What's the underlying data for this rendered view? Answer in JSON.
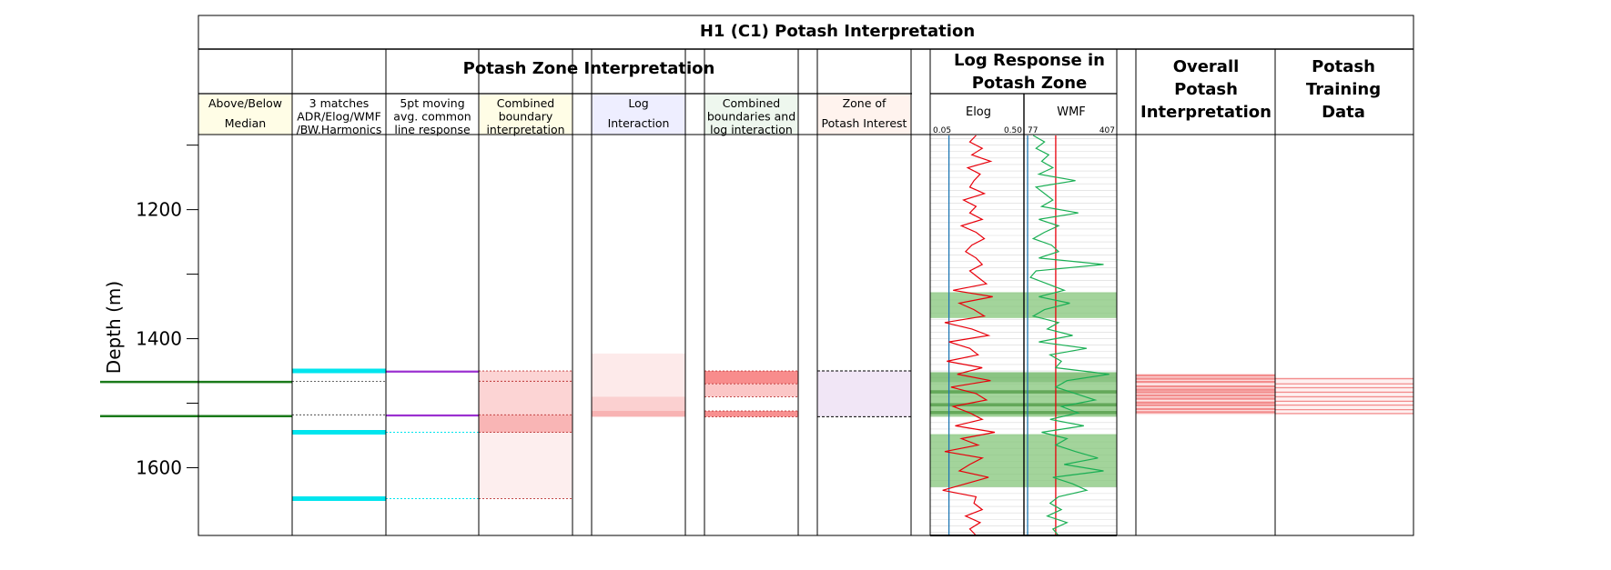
{
  "title": "H1 (C1) Potash Interpretation",
  "section_potash_zone": "Potash Zone Interpretation",
  "section_log_response": [
    "Log Response in",
    "Potash Zone"
  ],
  "section_overall": [
    "Overall",
    "Potash",
    "Interpretation"
  ],
  "section_training": [
    "Potash",
    "Training",
    "Data"
  ],
  "y_axis": {
    "label": "Depth (m)",
    "ticks": [
      "1200",
      "1400",
      "1600"
    ]
  },
  "tracks": [
    {
      "lines": [
        "Above/Below",
        "Median"
      ],
      "bg": "#fffde6"
    },
    {
      "lines": [
        "3 matches",
        "ADR/Elog/WMF",
        "/BW.Harmonics"
      ],
      "bg": "#ffffff"
    },
    {
      "lines": [
        "5pt moving",
        "avg. common",
        "line response"
      ],
      "bg": "#ffffff"
    },
    {
      "lines": [
        "Combined",
        "boundary",
        "interpretation"
      ],
      "bg": "#fffde6"
    },
    {
      "lines": [
        "Log",
        "Interaction"
      ],
      "bg": "#eeeeff"
    },
    {
      "lines": [
        "Combined",
        "boundaries and",
        "log interaction"
      ],
      "bg": "#eef7ee"
    },
    {
      "lines": [
        "Zone of",
        "Potash Interest"
      ],
      "bg": "#fff3ee"
    }
  ],
  "log_tracks": [
    {
      "name": "Elog",
      "min": "0.05",
      "max": "0.50",
      "color": "#e8000b"
    },
    {
      "name": "WMF",
      "min": "77",
      "max": "407",
      "color": "#1aaf54"
    }
  ],
  "chart_data": {
    "type": "log",
    "y_axis": {
      "label": "Depth (m)",
      "range": [
        1085,
        1705
      ],
      "inverted": true,
      "ticks": [
        1200,
        1400,
        1600
      ]
    },
    "above_below_median": {
      "color": "#1a7a1a",
      "depths": [
        1467,
        1520
      ]
    },
    "three_matches": {
      "color": "#00e5ee",
      "depths": [
        1450,
        1545,
        1648
      ],
      "dotted": [
        1466,
        1518
      ]
    },
    "moving_avg": {
      "color": "#9b30d0",
      "depths": [
        1451,
        1519
      ],
      "dotted": [
        1545,
        1648
      ]
    },
    "combined_boundary": {
      "intervals": [
        [
          1450,
          1546,
          "#fcd4d4"
        ],
        [
          1518,
          1545,
          "#f9b5b5"
        ],
        [
          1546,
          1648,
          "#fdeeee"
        ]
      ],
      "dotted": [
        1450,
        1466,
        1518,
        1545,
        1648
      ]
    },
    "log_interaction": {
      "intervals": [
        [
          1423,
          1490,
          "#fdeaea"
        ],
        [
          1490,
          1520,
          "#fbd0d0"
        ],
        [
          1512,
          1521,
          "#f8b3b3"
        ]
      ]
    },
    "combined_log_interaction": {
      "intervals": [
        [
          1450,
          1470,
          "#f88c8c"
        ],
        [
          1470,
          1490,
          "#fbc6c6"
        ],
        [
          1512,
          1521,
          "#f89090"
        ]
      ],
      "dotted": [
        1450,
        1470,
        1490,
        1512,
        1521
      ]
    },
    "zone_of_interest": {
      "interval": [
        1450,
        1521
      ],
      "color": "#f1e6f6"
    },
    "log_highlights": [
      [
        1328,
        1368,
        "#84c67a"
      ],
      [
        1452,
        1468,
        "#64b05a"
      ],
      [
        1468,
        1521,
        "#84c67a"
      ],
      [
        1480,
        1485,
        "#4f9a44"
      ],
      [
        1500,
        1505,
        "#4f9a44"
      ],
      [
        1512,
        1517,
        "#4f9a44"
      ],
      [
        1548,
        1630,
        "#84c67a"
      ]
    ],
    "elog_cutoff": 0.14,
    "wmf_cutoff": 190,
    "elog_series": {
      "depth": [
        1085,
        1095,
        1105,
        1115,
        1125,
        1135,
        1145,
        1155,
        1165,
        1175,
        1185,
        1195,
        1205,
        1215,
        1225,
        1235,
        1245,
        1255,
        1265,
        1275,
        1285,
        1295,
        1305,
        1315,
        1325,
        1335,
        1345,
        1355,
        1365,
        1375,
        1385,
        1395,
        1405,
        1415,
        1425,
        1435,
        1445,
        1455,
        1465,
        1475,
        1485,
        1495,
        1505,
        1515,
        1525,
        1535,
        1545,
        1555,
        1565,
        1575,
        1585,
        1595,
        1605,
        1615,
        1625,
        1635,
        1645,
        1655,
        1665,
        1675,
        1685,
        1695,
        1705
      ],
      "value": [
        0.27,
        0.24,
        0.3,
        0.25,
        0.34,
        0.23,
        0.29,
        0.26,
        0.24,
        0.31,
        0.21,
        0.27,
        0.24,
        0.3,
        0.2,
        0.27,
        0.31,
        0.25,
        0.22,
        0.27,
        0.3,
        0.24,
        0.28,
        0.32,
        0.16,
        0.35,
        0.19,
        0.26,
        0.31,
        0.12,
        0.25,
        0.33,
        0.14,
        0.24,
        0.28,
        0.13,
        0.3,
        0.18,
        0.34,
        0.15,
        0.27,
        0.32,
        0.16,
        0.24,
        0.3,
        0.17,
        0.36,
        0.2,
        0.28,
        0.12,
        0.3,
        0.24,
        0.19,
        0.33,
        0.22,
        0.11,
        0.27,
        0.26,
        0.3,
        0.22,
        0.29,
        0.24,
        0.27
      ]
    },
    "wmf_series": {
      "depth": [
        1085,
        1095,
        1105,
        1115,
        1125,
        1135,
        1145,
        1155,
        1165,
        1175,
        1185,
        1195,
        1205,
        1215,
        1225,
        1235,
        1245,
        1255,
        1265,
        1275,
        1285,
        1295,
        1305,
        1315,
        1325,
        1335,
        1345,
        1355,
        1365,
        1375,
        1385,
        1395,
        1405,
        1415,
        1425,
        1435,
        1445,
        1455,
        1465,
        1475,
        1485,
        1495,
        1505,
        1515,
        1525,
        1535,
        1545,
        1555,
        1565,
        1575,
        1585,
        1595,
        1605,
        1615,
        1625,
        1635,
        1645,
        1655,
        1665,
        1675,
        1685,
        1695,
        1705
      ],
      "value": [
        110,
        150,
        120,
        165,
        140,
        180,
        130,
        260,
        120,
        150,
        180,
        140,
        270,
        130,
        200,
        150,
        110,
        175,
        200,
        130,
        360,
        120,
        100,
        160,
        220,
        130,
        240,
        150,
        110,
        200,
        160,
        250,
        130,
        300,
        170,
        210,
        190,
        380,
        230,
        190,
        260,
        330,
        210,
        270,
        170,
        290,
        140,
        230,
        190,
        260,
        340,
        220,
        360,
        180,
        250,
        300,
        200,
        170,
        210,
        160,
        230,
        180,
        200
      ]
    },
    "overall": {
      "color": "#f38d8d",
      "depths": [
        1457,
        1462,
        1467,
        1474,
        1479,
        1483,
        1488,
        1493,
        1499,
        1503,
        1509,
        1514
      ]
    },
    "training": {
      "color": "#f38d8d",
      "depths": [
        1462,
        1470,
        1476,
        1483,
        1490,
        1497,
        1503,
        1510,
        1516
      ]
    }
  }
}
